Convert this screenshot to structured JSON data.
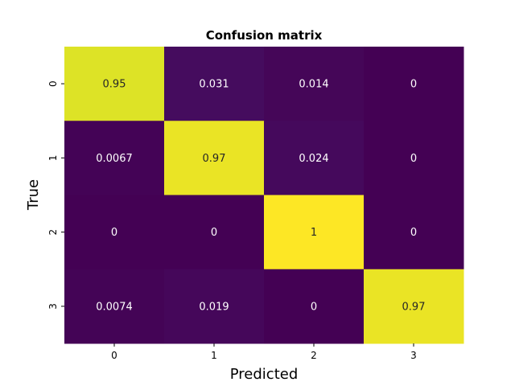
{
  "chart_data": {
    "type": "heatmap",
    "title": "Confusion matrix",
    "xlabel": "Predicted",
    "ylabel": "True",
    "x_categories": [
      "0",
      "1",
      "2",
      "3"
    ],
    "y_categories": [
      "0",
      "1",
      "2",
      "3"
    ],
    "values": [
      [
        0.95,
        0.031,
        0.014,
        0
      ],
      [
        0.0067,
        0.97,
        0.024,
        0
      ],
      [
        0,
        0,
        1,
        0
      ],
      [
        0.0074,
        0.019,
        0,
        0.97
      ]
    ],
    "labels": [
      [
        "0.95",
        "0.031",
        "0.014",
        "0"
      ],
      [
        "0.0067",
        "0.97",
        "0.024",
        "0"
      ],
      [
        "0",
        "0",
        "1",
        "0"
      ],
      [
        "0.0074",
        "0.019",
        "0",
        "0.97"
      ]
    ],
    "colormap": "viridis",
    "vmin": 0,
    "vmax": 1,
    "colorbar": false
  }
}
